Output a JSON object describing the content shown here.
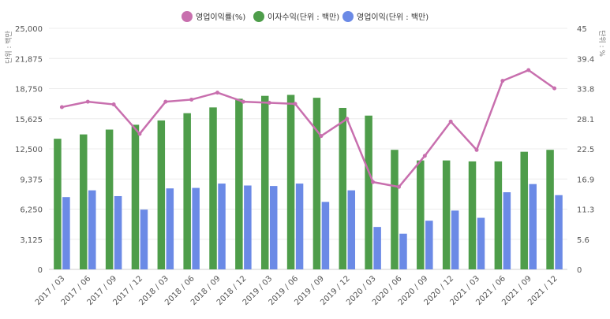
{
  "chart_data": {
    "type": "bar",
    "legend_position": "top",
    "grid": true,
    "categories": [
      "2017 / 03",
      "2017 / 06",
      "2017 / 09",
      "2017 / 12",
      "2018 / 03",
      "2018 / 06",
      "2018 / 09",
      "2018 / 12",
      "2019 / 03",
      "2019 / 06",
      "2019 / 09",
      "2019 / 12",
      "2020 / 03",
      "2020 / 06",
      "2020 / 09",
      "2020 / 12",
      "2021 / 03",
      "2021 / 06",
      "2021 / 09",
      "2021 / 12"
    ],
    "left_axis": {
      "label": "단위 : 백만",
      "range": [
        0,
        25000
      ],
      "ticks": [
        "0",
        "3,125",
        "6,250",
        "9,375",
        "12,500",
        "15,625",
        "18,750",
        "21,875",
        "25,000"
      ]
    },
    "right_axis": {
      "label": "단위 : %",
      "range": [
        0,
        45
      ],
      "ticks": [
        "0",
        "5.6",
        "11.3",
        "16.9",
        "22.5",
        "28.1",
        "33.8",
        "39.4",
        "45"
      ]
    },
    "series": [
      {
        "name": "영업이익률(%)",
        "type": "line",
        "axis": "right",
        "color": "#c86fae",
        "values": [
          30.3,
          31.3,
          30.8,
          25.3,
          31.3,
          31.7,
          33.0,
          31.3,
          31.1,
          30.9,
          24.9,
          28.1,
          16.3,
          15.4,
          21.2,
          27.6,
          22.3,
          35.2,
          37.2,
          33.8
        ]
      },
      {
        "name": "이자수익(단위 : 백만)",
        "type": "bar",
        "axis": "left",
        "color": "#4e9d4a",
        "values": [
          13550,
          14000,
          14500,
          15000,
          15450,
          16200,
          16800,
          17700,
          18000,
          18100,
          17800,
          16750,
          15950,
          12400,
          11300,
          11300,
          11200,
          11200,
          12200,
          12400
        ]
      },
      {
        "name": "영업이익(단위 : 백만)",
        "type": "bar",
        "axis": "left",
        "color": "#6b8ae6",
        "values": [
          7500,
          8200,
          7600,
          6200,
          8400,
          8450,
          8900,
          8700,
          8650,
          8900,
          7000,
          8200,
          4400,
          3700,
          5050,
          6100,
          5350,
          8000,
          8850,
          7700
        ]
      }
    ]
  }
}
